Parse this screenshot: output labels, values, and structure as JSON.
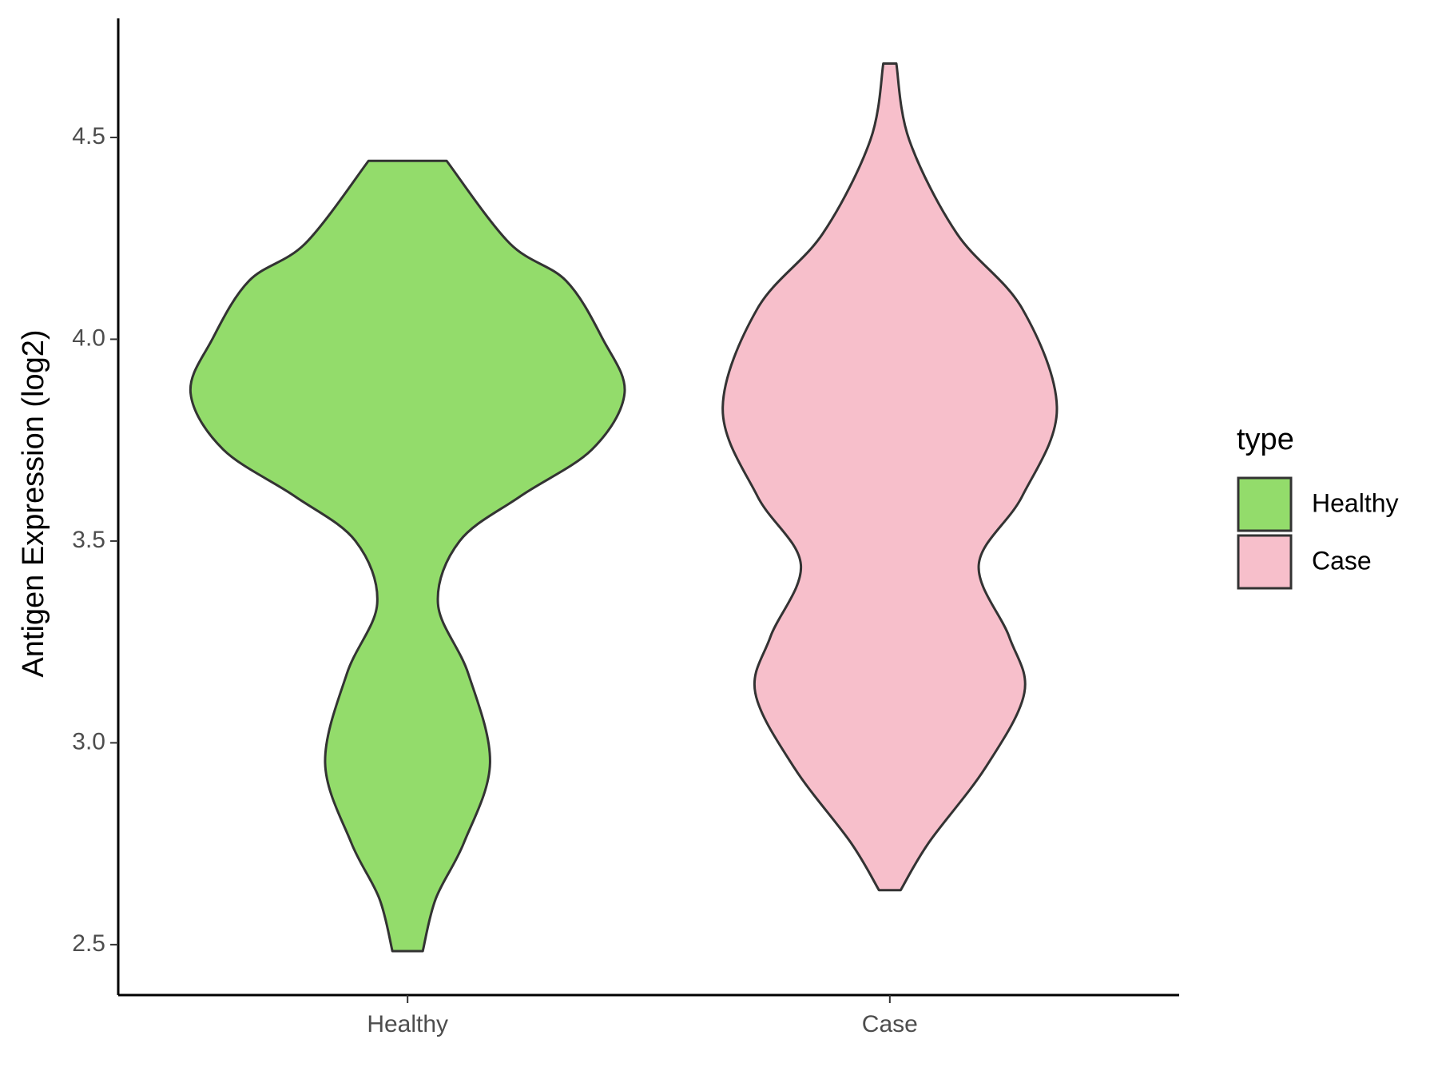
{
  "chart_data": {
    "type": "violin",
    "y_label": "Antigen Expression (log2)",
    "categories": [
      "Healthy",
      "Case"
    ],
    "ylim": [
      2.375,
      4.795
    ],
    "yticks": [
      2.5,
      {
        "value": 3,
        "label": "3.0"
      },
      3.5,
      {
        "value": 4,
        "label": "4.0"
      },
      4.5
    ],
    "legend_title": "type",
    "series": [
      {
        "name": "Healthy",
        "color": "#93dc6b",
        "y": [
          4.442,
          4.238,
          4.145,
          4.0,
          3.867,
          3.727,
          3.611,
          3.5,
          3.345,
          3.171,
          2.95,
          2.753,
          2.614,
          2.484
        ],
        "density": [
          0.18,
          0.47,
          0.73,
          0.9,
          1.0,
          0.85,
          0.52,
          0.24,
          0.14,
          0.28,
          0.38,
          0.26,
          0.13,
          0.07
        ]
      },
      {
        "name": "Case",
        "color": "#f7bfcb",
        "y": [
          4.683,
          4.493,
          4.261,
          4.076,
          3.827,
          3.611,
          3.442,
          3.263,
          3.124,
          2.938,
          2.753,
          2.635
        ],
        "density": [
          0.03,
          0.09,
          0.31,
          0.61,
          0.77,
          0.61,
          0.41,
          0.55,
          0.62,
          0.44,
          0.18,
          0.05
        ]
      }
    ]
  }
}
